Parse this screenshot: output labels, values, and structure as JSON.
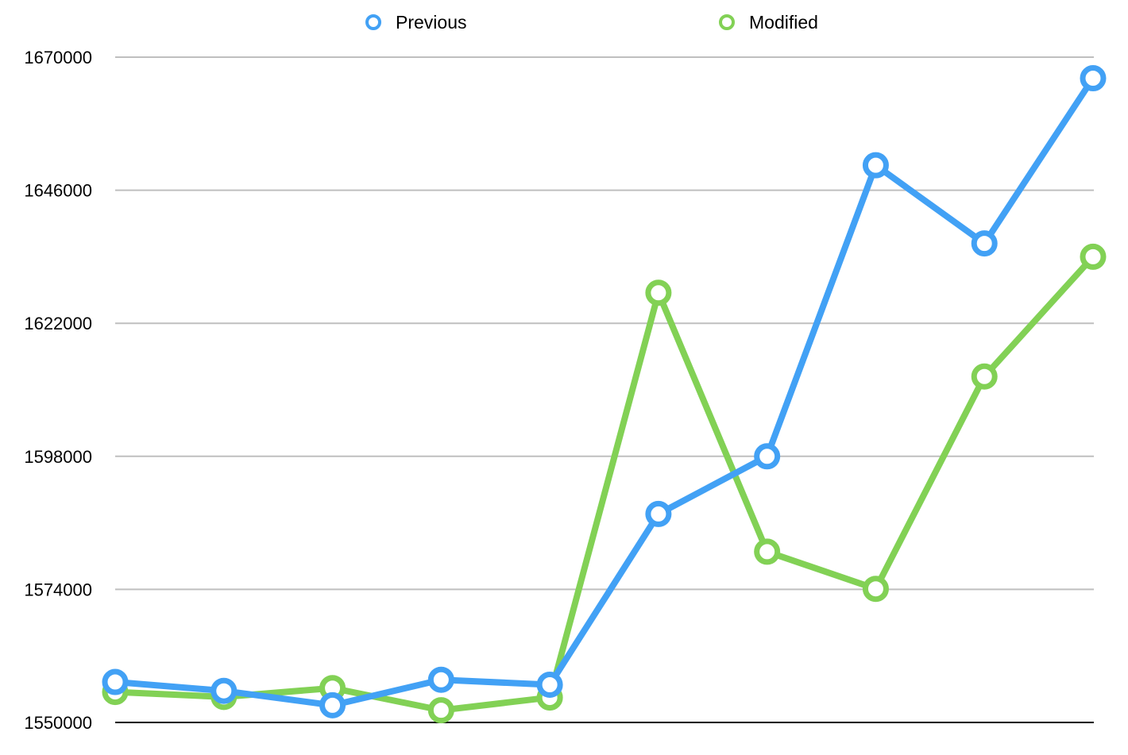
{
  "chart_data": {
    "type": "line",
    "title": "",
    "xlabel": "",
    "ylabel": "",
    "ylim": [
      1550000,
      1670000
    ],
    "yticks": [
      "1550000",
      "1574000",
      "1598000",
      "1622000",
      "1646000",
      "1670000"
    ],
    "grid": true,
    "legend_position": "top",
    "x": [
      1,
      2,
      3,
      4,
      5,
      6,
      7,
      8,
      9,
      10
    ],
    "series": [
      {
        "name": "Previous",
        "color": "#42a1f5",
        "values": [
          1557300,
          1555700,
          1553100,
          1557700,
          1556800,
          1587600,
          1598000,
          1650500,
          1636400,
          1666200
        ]
      },
      {
        "name": "Modified",
        "color": "#82d155",
        "values": [
          1555500,
          1554600,
          1556200,
          1552200,
          1554500,
          1627500,
          1580800,
          1574100,
          1612400,
          1634000
        ]
      }
    ]
  }
}
